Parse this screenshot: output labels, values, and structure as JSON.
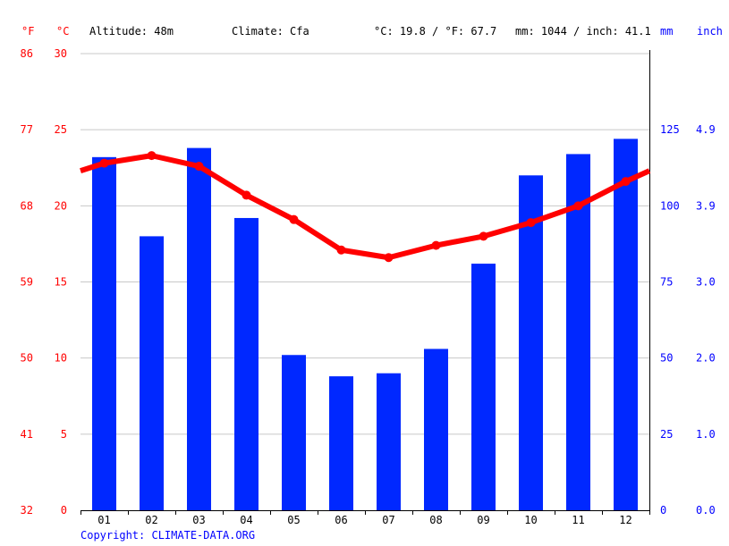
{
  "header": {
    "unit_f": "°F",
    "unit_c": "°C",
    "altitude": "Altitude: 48m",
    "climate": "Climate: Cfa",
    "avg_temp": "°C: 19.8 / °F: 67.7",
    "precip": "mm: 1044 / inch: 41.1",
    "unit_mm": "mm",
    "unit_inch": "inch"
  },
  "colors": {
    "temperature": "#ff0000",
    "precipitation": "#0028ff",
    "grid": "#c8c8c8",
    "axis": "#000000"
  },
  "copyright": "Copyright: CLIMATE-DATA.ORG",
  "chart_data": {
    "type": "bar+line",
    "categories": [
      "01",
      "02",
      "03",
      "04",
      "05",
      "06",
      "07",
      "08",
      "09",
      "10",
      "11",
      "12"
    ],
    "precipitation_mm": [
      116,
      90,
      119,
      96,
      51,
      44,
      45,
      53,
      81,
      110,
      117,
      122
    ],
    "temperature_c": [
      22.8,
      23.3,
      22.6,
      20.7,
      19.1,
      17.1,
      16.6,
      17.4,
      18.0,
      18.9,
      20.0,
      21.6
    ],
    "temperature_line_start_c": 22.3,
    "temperature_line_end_c": 22.3,
    "left_axis_c": {
      "ticks": [
        "0",
        "5",
        "10",
        "15",
        "20",
        "25",
        "30"
      ],
      "ylim": [
        0,
        30
      ]
    },
    "left_axis_f": {
      "ticks": [
        "32",
        "41",
        "50",
        "59",
        "68",
        "77",
        "86"
      ]
    },
    "right_axis_mm": {
      "ticks": [
        "0",
        "25",
        "50",
        "75",
        "100",
        "125"
      ],
      "ylim": [
        0,
        150
      ]
    },
    "right_axis_inch": {
      "ticks": [
        "0.0",
        "1.0",
        "2.0",
        "3.0",
        "3.9",
        "4.9"
      ]
    },
    "grid": true
  }
}
